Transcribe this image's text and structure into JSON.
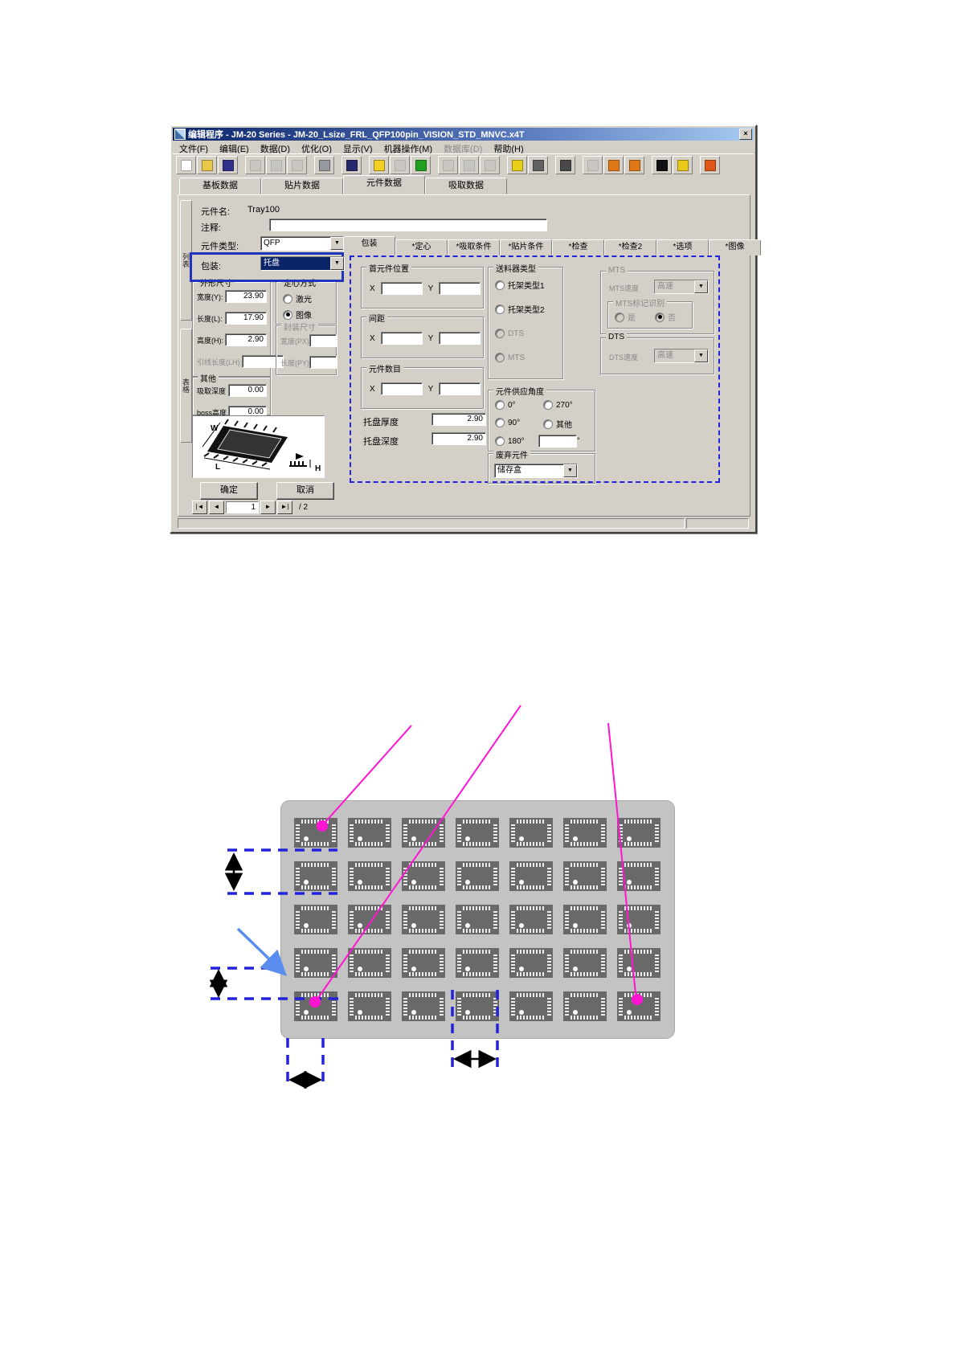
{
  "window": {
    "title": "编辑程序 - JM-20 Series - JM-20_Lsize_FRL_QFP100pin_VISION_STD_MNVC.x4T",
    "close_glyph": "×"
  },
  "menu": {
    "items": [
      {
        "label": "文件(F)"
      },
      {
        "label": "编辑(E)"
      },
      {
        "label": "数据(D)"
      },
      {
        "label": "优化(O)"
      },
      {
        "label": "显示(V)"
      },
      {
        "label": "机器操作(M)"
      },
      {
        "label": "数据库(D)",
        "disabled": true
      },
      {
        "label": "帮助(H)"
      }
    ]
  },
  "toolbar": {
    "buttons": [
      {
        "name": "new-file",
        "color": "#ffffff"
      },
      {
        "name": "open-file",
        "color": "#e8c84a"
      },
      {
        "name": "save-file",
        "color": "#30308a"
      },
      {
        "name": "cut",
        "color": "#b8b4ac",
        "disabled": true,
        "gap": true
      },
      {
        "name": "copy",
        "color": "#b8b4ac",
        "disabled": true
      },
      {
        "name": "paste",
        "color": "#b8b4ac",
        "disabled": true
      },
      {
        "name": "print",
        "color": "#9898a0",
        "gap": true
      },
      {
        "name": "find-binoculars",
        "color": "#28286e",
        "gap": true
      },
      {
        "name": "optimize-bulb",
        "color": "#f0d020",
        "gap": true
      },
      {
        "name": "machine",
        "color": "#b8b4ac",
        "disabled": true
      },
      {
        "name": "color-balls",
        "color": "#20a020"
      },
      {
        "name": "tool-1",
        "color": "#b8b4ac",
        "disabled": true,
        "gap": true
      },
      {
        "name": "tool-2",
        "color": "#b8b4ac",
        "disabled": true
      },
      {
        "name": "tool-3",
        "color": "#b8b4ac",
        "disabled": true
      },
      {
        "name": "marker-x",
        "color": "#e8d018",
        "gap": true
      },
      {
        "name": "beam",
        "color": "#606060"
      },
      {
        "name": "glasses",
        "color": "#484848",
        "gap": true
      },
      {
        "name": "mount",
        "color": "#b8b4ac",
        "disabled": true,
        "gap": true
      },
      {
        "name": "io-1",
        "color": "#e07818"
      },
      {
        "name": "io-2",
        "color": "#e07818"
      },
      {
        "name": "context-help",
        "color": "#101010",
        "gap": true
      },
      {
        "name": "help",
        "color": "#e8c818"
      },
      {
        "name": "exit-door",
        "color": "#e05818",
        "gap": true
      }
    ]
  },
  "tabs": {
    "items": [
      "基板数据",
      "贴片数据",
      "元件数据",
      "吸取数据"
    ],
    "active_index": 2
  },
  "side_tabs": [
    "列表",
    "表格"
  ],
  "subtabs": {
    "items": [
      "包装",
      "*定心",
      "*吸取条件",
      "*贴片条件",
      "*检查",
      "*检查2",
      "*选项",
      "*图像"
    ],
    "active_index": 0
  },
  "form": {
    "component_name_label": "元件名:",
    "component_name_value": "Tray100",
    "comment_label": "注释:",
    "comment_value": "",
    "component_type_label": "元件类型:",
    "component_type_value": "QFP",
    "package_label": "包装:",
    "package_value": "托盘"
  },
  "groups": {
    "outline": {
      "title": "外形尺寸",
      "fields": [
        {
          "label": "宽度(Y):",
          "value": "23.90"
        },
        {
          "label": "长度(L):",
          "value": "17.90"
        },
        {
          "label": "高度(H):",
          "value": "2.90"
        },
        {
          "label": "引线长度(LH):",
          "value": "",
          "disabled": true
        }
      ]
    },
    "centering": {
      "title": "定心方式",
      "options": [
        {
          "label": "激光",
          "checked": false
        },
        {
          "label": "图像",
          "checked": true
        }
      ]
    },
    "package_size": {
      "title": "封装尺寸",
      "fields": [
        {
          "label": "宽度(PX)",
          "value": "",
          "disabled": true
        },
        {
          "label": "长度(PY)",
          "value": "",
          "disabled": true
        }
      ]
    },
    "other": {
      "title": "其他",
      "fields": [
        {
          "label": "吸取深度",
          "value": "0.00"
        },
        {
          "label": "boss高度",
          "value": "0.00"
        }
      ]
    },
    "first_pos": {
      "title": "首元件位置",
      "x_label": "X",
      "y_label": "Y",
      "x_value": "",
      "y_value": ""
    },
    "pitch": {
      "title": "间距",
      "x_label": "X",
      "y_label": "Y",
      "x_value": "",
      "y_value": ""
    },
    "count": {
      "title": "元件数目",
      "x_label": "X",
      "y_label": "Y",
      "x_value": "",
      "y_value": ""
    },
    "tray_thickness": {
      "label": "托盘厚度",
      "value": "2.90"
    },
    "tray_depth": {
      "label": "托盘深度",
      "value": "2.90"
    },
    "feeder_type": {
      "title": "送料器类型",
      "options": [
        {
          "label": "托架类型1",
          "checked": false
        },
        {
          "label": "托架类型2",
          "checked": false
        },
        {
          "label": "DTS",
          "checked": false,
          "disabled": true
        },
        {
          "label": "MTS",
          "checked": false,
          "disabled": true
        }
      ]
    },
    "supply_angle": {
      "title": "元件供应角度",
      "options": [
        {
          "label": "0°",
          "checked": false
        },
        {
          "label": "270°",
          "checked": false
        },
        {
          "label": "90°",
          "checked": false
        },
        {
          "label": "其他",
          "checked": false
        },
        {
          "label": "180°",
          "checked": false
        }
      ],
      "other_value": "",
      "degree_suffix": "°"
    },
    "discard": {
      "title": "废弃元件",
      "value": "储存盒"
    },
    "mts": {
      "title": "MTS",
      "speed_label": "MTS速度",
      "speed_value": "高速",
      "mark_title": "MTS标记识别",
      "yes": "是",
      "no": "否"
    },
    "dts": {
      "title": "DTS",
      "speed_label": "DTS速度",
      "speed_value": "高速"
    }
  },
  "image_labels": {
    "w": "W",
    "l": "L",
    "h": "H"
  },
  "buttons": {
    "ok": "确定",
    "cancel": "取消"
  },
  "pager": {
    "first": "|◄",
    "prev": "◄",
    "value": "1",
    "next": "►",
    "last": "►|",
    "total": "/ 2"
  },
  "tray": {
    "rows": 5,
    "cols": 7
  },
  "colors": {
    "titlebar": "#0a246a",
    "annotation_dashed": "#2222dd",
    "magenta": "#ff14d2",
    "pointer_blue": "#5b8dee"
  }
}
